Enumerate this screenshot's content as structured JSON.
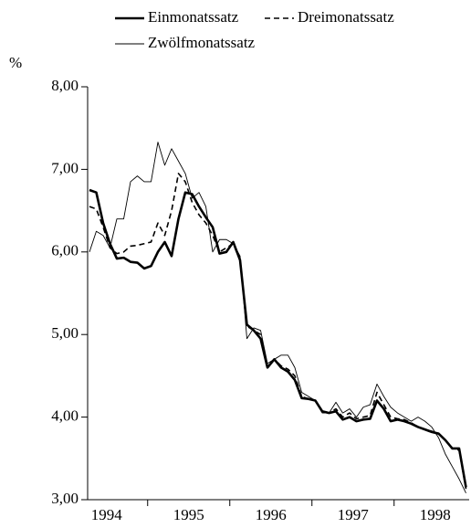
{
  "chart_data": {
    "type": "line",
    "y_label": "%",
    "categories": [
      null,
      null,
      null,
      "1994",
      null,
      null,
      null,
      null,
      null,
      null,
      null,
      null,
      null,
      null,
      null,
      "1995",
      null,
      null,
      null,
      null,
      null,
      null,
      null,
      null,
      null,
      null,
      null,
      "1996",
      null,
      null,
      null,
      null,
      null,
      null,
      null,
      null,
      null,
      null,
      null,
      "1997",
      null,
      null,
      null,
      null,
      null,
      null,
      null,
      null,
      null,
      null,
      null,
      "1998",
      null,
      null,
      null,
      null
    ],
    "series": [
      {
        "name": "Einmonatssatz",
        "color": "#000000",
        "style": "thick",
        "values": [
          6.75,
          6.72,
          6.35,
          6.1,
          5.92,
          5.93,
          5.88,
          5.87,
          5.8,
          5.83,
          6.0,
          6.12,
          5.95,
          6.4,
          6.72,
          6.7,
          6.55,
          6.42,
          6.3,
          5.98,
          6.0,
          6.12,
          5.9,
          5.12,
          5.05,
          4.95,
          4.6,
          4.7,
          4.6,
          4.55,
          4.45,
          4.23,
          4.22,
          4.2,
          4.07,
          4.05,
          4.07,
          3.97,
          4.0,
          3.95,
          3.97,
          3.98,
          4.2,
          4.1,
          3.95,
          3.97,
          3.95,
          3.92,
          3.88,
          3.85,
          3.82,
          3.8,
          3.72,
          3.62,
          3.62,
          3.15
        ]
      },
      {
        "name": "Dreimonatssatz",
        "color": "#000000",
        "style": "dashed",
        "values": [
          6.55,
          6.52,
          6.3,
          6.05,
          5.98,
          6.0,
          6.07,
          6.08,
          6.1,
          6.12,
          6.35,
          6.2,
          6.5,
          6.95,
          6.85,
          6.6,
          6.45,
          6.35,
          6.2,
          6.0,
          6.05,
          6.1,
          5.9,
          5.1,
          5.05,
          5.0,
          4.6,
          4.7,
          4.62,
          4.58,
          4.5,
          4.25,
          4.22,
          4.2,
          4.08,
          4.05,
          4.1,
          4.0,
          4.05,
          3.98,
          4.0,
          4.02,
          4.3,
          4.15,
          4.0,
          3.98,
          3.97,
          3.93,
          3.88,
          3.85,
          3.83,
          3.8,
          3.72,
          3.62,
          3.6,
          3.13
        ]
      },
      {
        "name": "Zwölfmonatssatz",
        "color": "#000000",
        "style": "thin",
        "values": [
          6.0,
          6.25,
          6.2,
          6.05,
          6.4,
          6.4,
          6.85,
          6.92,
          6.85,
          6.85,
          7.33,
          7.05,
          7.25,
          7.1,
          6.95,
          6.65,
          6.72,
          6.55,
          6.0,
          6.15,
          6.15,
          6.1,
          5.95,
          4.95,
          5.08,
          5.05,
          4.65,
          4.7,
          4.75,
          4.75,
          4.6,
          4.3,
          4.25,
          4.2,
          4.05,
          4.05,
          4.18,
          4.05,
          4.1,
          4.0,
          4.12,
          4.15,
          4.4,
          4.25,
          4.12,
          4.05,
          4.0,
          3.95,
          4.0,
          3.95,
          3.88,
          3.75,
          3.55,
          3.4,
          3.25,
          3.08
        ]
      }
    ],
    "ylim": [
      3,
      8
    ],
    "yticks": [
      {
        "value": 3,
        "label": "3,00"
      },
      {
        "value": 4,
        "label": "4,00"
      },
      {
        "value": 5,
        "label": "5,00"
      },
      {
        "value": 6,
        "label": "6,00"
      },
      {
        "value": 7,
        "label": "7,00"
      },
      {
        "value": 8,
        "label": "8,00"
      }
    ],
    "grid": false
  }
}
